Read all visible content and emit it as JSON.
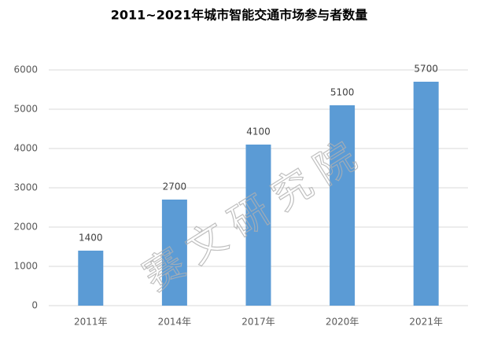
{
  "chart_data": {
    "type": "bar",
    "title": "2011~2021年城市智能交通市场参与者数量",
    "categories": [
      "2011年",
      "2014年",
      "2017年",
      "2020年",
      "2021年"
    ],
    "values": [
      1400,
      2700,
      4100,
      5100,
      5700
    ],
    "color": "#5b9bd5",
    "ylim": [
      0,
      6000
    ],
    "yticks": [
      0,
      1000,
      2000,
      3000,
      4000,
      5000,
      6000
    ],
    "grid": true,
    "watermark": "赛文研究院"
  }
}
